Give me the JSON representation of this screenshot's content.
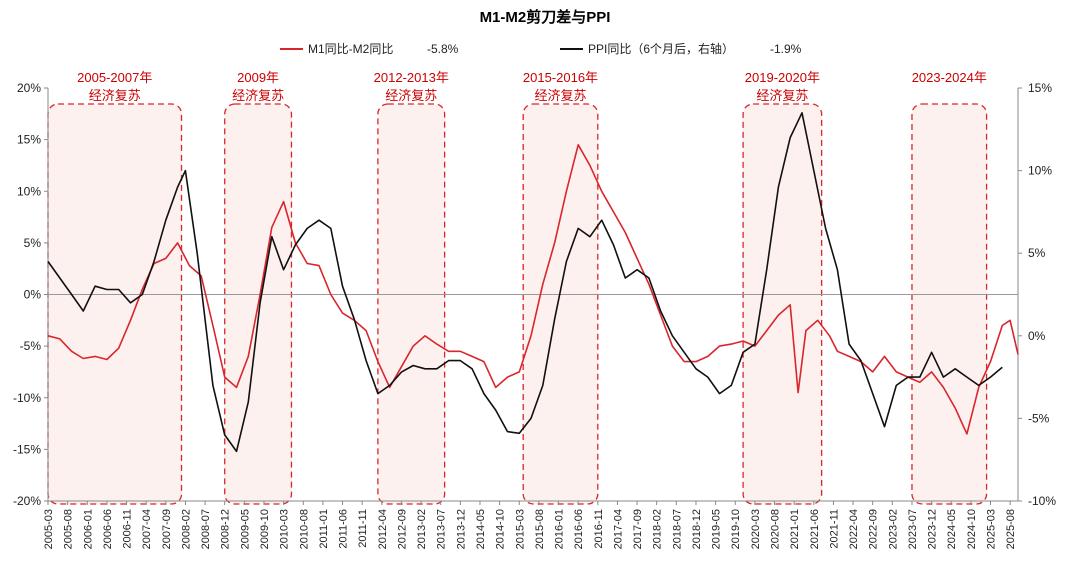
{
  "chart_data": {
    "type": "line",
    "title": "M1-M2剪刀差与PPI",
    "legend": [
      {
        "name": "M1同比-M2同比",
        "value": "-5.8%",
        "color": "#d9262c"
      },
      {
        "name": "PPI同比（6个月后，右轴）",
        "value": "-1.9%",
        "color": "#111111"
      }
    ],
    "left_axis": {
      "min": -20,
      "max": 20,
      "ticks": [
        "20%",
        "15%",
        "10%",
        "5%",
        "0%",
        "-5%",
        "-10%",
        "-15%",
        "-20%"
      ]
    },
    "right_axis": {
      "min": -10,
      "max": 15,
      "ticks": [
        "15%",
        "10%",
        "5%",
        "0%",
        "-5%",
        "-10%"
      ]
    },
    "x_tick_labels": [
      "2005-03",
      "2005-08",
      "2006-01",
      "2006-06",
      "2006-11",
      "2007-04",
      "2007-09",
      "2008-02",
      "2008-07",
      "2008-12",
      "2009-05",
      "2009-10",
      "2010-03",
      "2010-08",
      "2011-01",
      "2011-06",
      "2011-11",
      "2012-04",
      "2012-09",
      "2013-02",
      "2013-07",
      "2013-12",
      "2014-05",
      "2014-10",
      "2015-03",
      "2015-08",
      "2016-01",
      "2016-06",
      "2016-11",
      "2017-04",
      "2017-09",
      "2018-02",
      "2018-07",
      "2018-12",
      "2019-05",
      "2019-10",
      "2020-03",
      "2020-08",
      "2021-01",
      "2021-06",
      "2021-11",
      "2022-04",
      "2022-09",
      "2023-02",
      "2023-07",
      "2023-12",
      "2024-05",
      "2024-10",
      "2025-03",
      "2025-08"
    ],
    "highlight_bands": [
      {
        "line1": "2005-2007年",
        "line2": "经济复苏",
        "start": "2005-03",
        "end": "2008-01"
      },
      {
        "line1": "2009年",
        "line2": "经济复苏",
        "start": "2008-12",
        "end": "2010-05"
      },
      {
        "line1": "2012-2013年",
        "line2": "经济复苏",
        "start": "2012-03",
        "end": "2013-08"
      },
      {
        "line1": "2015-2016年",
        "line2": "经济复苏",
        "start": "2015-04",
        "end": "2016-11"
      },
      {
        "line1": "2019-2020年",
        "line2": "经济复苏",
        "start": "2019-12",
        "end": "2021-08"
      },
      {
        "line1": "2023-2024年",
        "line2": "",
        "start": "2023-07",
        "end": "2025-02"
      }
    ],
    "series": [
      {
        "name": "M1同比-M2同比",
        "axis": "left",
        "color": "#d9262c",
        "points": [
          [
            "2005-03",
            -4.0
          ],
          [
            "2005-06",
            -4.3
          ],
          [
            "2005-09",
            -5.5
          ],
          [
            "2005-12",
            -6.2
          ],
          [
            "2006-03",
            -6.0
          ],
          [
            "2006-06",
            -6.3
          ],
          [
            "2006-09",
            -5.2
          ],
          [
            "2006-12",
            -2.5
          ],
          [
            "2007-03",
            0.5
          ],
          [
            "2007-06",
            3.0
          ],
          [
            "2007-09",
            3.5
          ],
          [
            "2007-12",
            5.0
          ],
          [
            "2008-03",
            2.8
          ],
          [
            "2008-06",
            1.8
          ],
          [
            "2008-09",
            -3.0
          ],
          [
            "2008-12",
            -8.0
          ],
          [
            "2009-03",
            -9.0
          ],
          [
            "2009-06",
            -6.0
          ],
          [
            "2009-09",
            0.0
          ],
          [
            "2009-12",
            6.5
          ],
          [
            "2010-03",
            9.0
          ],
          [
            "2010-06",
            5.0
          ],
          [
            "2010-09",
            3.0
          ],
          [
            "2010-12",
            2.8
          ],
          [
            "2011-03",
            0.0
          ],
          [
            "2011-06",
            -1.8
          ],
          [
            "2011-09",
            -2.5
          ],
          [
            "2011-12",
            -3.5
          ],
          [
            "2012-03",
            -6.5
          ],
          [
            "2012-06",
            -9.0
          ],
          [
            "2012-09",
            -7.0
          ],
          [
            "2012-12",
            -5.0
          ],
          [
            "2013-03",
            -4.0
          ],
          [
            "2013-06",
            -4.8
          ],
          [
            "2013-09",
            -5.5
          ],
          [
            "2013-12",
            -5.5
          ],
          [
            "2014-03",
            -6.0
          ],
          [
            "2014-06",
            -6.5
          ],
          [
            "2014-09",
            -9.0
          ],
          [
            "2014-12",
            -8.0
          ],
          [
            "2015-03",
            -7.5
          ],
          [
            "2015-06",
            -4.0
          ],
          [
            "2015-09",
            1.0
          ],
          [
            "2015-12",
            5.0
          ],
          [
            "2016-03",
            10.0
          ],
          [
            "2016-06",
            14.5
          ],
          [
            "2016-09",
            12.5
          ],
          [
            "2016-12",
            10.0
          ],
          [
            "2017-03",
            8.0
          ],
          [
            "2017-06",
            6.0
          ],
          [
            "2017-09",
            3.5
          ],
          [
            "2017-12",
            1.0
          ],
          [
            "2018-03",
            -2.0
          ],
          [
            "2018-06",
            -5.0
          ],
          [
            "2018-09",
            -6.5
          ],
          [
            "2018-12",
            -6.5
          ],
          [
            "2019-03",
            -6.0
          ],
          [
            "2019-06",
            -5.0
          ],
          [
            "2019-09",
            -4.8
          ],
          [
            "2019-12",
            -4.5
          ],
          [
            "2020-03",
            -5.0
          ],
          [
            "2020-06",
            -3.5
          ],
          [
            "2020-09",
            -2.0
          ],
          [
            "2020-12",
            -1.0
          ],
          [
            "2021-02",
            -9.5
          ],
          [
            "2021-04",
            -3.5
          ],
          [
            "2021-07",
            -2.5
          ],
          [
            "2021-10",
            -4.0
          ],
          [
            "2021-12",
            -5.5
          ],
          [
            "2022-03",
            -6.0
          ],
          [
            "2022-06",
            -6.5
          ],
          [
            "2022-09",
            -7.5
          ],
          [
            "2022-12",
            -6.0
          ],
          [
            "2023-03",
            -7.5
          ],
          [
            "2023-06",
            -8.0
          ],
          [
            "2023-09",
            -8.5
          ],
          [
            "2023-12",
            -7.5
          ],
          [
            "2024-03",
            -9.0
          ],
          [
            "2024-06",
            -11.0
          ],
          [
            "2024-09",
            -13.5
          ],
          [
            "2024-12",
            -9.0
          ],
          [
            "2025-03",
            -6.5
          ],
          [
            "2025-06",
            -3.0
          ],
          [
            "2025-08",
            -2.5
          ],
          [
            "2025-10",
            -5.8
          ]
        ]
      },
      {
        "name": "PPI同比（6个月后，右轴）",
        "axis": "right",
        "color": "#111111",
        "points": [
          [
            "2005-03",
            4.5
          ],
          [
            "2005-06",
            3.5
          ],
          [
            "2005-09",
            2.5
          ],
          [
            "2005-12",
            1.5
          ],
          [
            "2006-03",
            3.0
          ],
          [
            "2006-06",
            2.8
          ],
          [
            "2006-09",
            2.8
          ],
          [
            "2006-12",
            2.0
          ],
          [
            "2007-03",
            2.5
          ],
          [
            "2007-06",
            4.5
          ],
          [
            "2007-09",
            7.0
          ],
          [
            "2007-12",
            9.0
          ],
          [
            "2008-02",
            10.0
          ],
          [
            "2008-05",
            5.0
          ],
          [
            "2008-09",
            -3.0
          ],
          [
            "2008-12",
            -6.0
          ],
          [
            "2009-03",
            -7.0
          ],
          [
            "2009-06",
            -4.0
          ],
          [
            "2009-09",
            2.0
          ],
          [
            "2009-12",
            6.0
          ],
          [
            "2010-03",
            4.0
          ],
          [
            "2010-06",
            5.5
          ],
          [
            "2010-09",
            6.5
          ],
          [
            "2010-12",
            7.0
          ],
          [
            "2011-03",
            6.5
          ],
          [
            "2011-06",
            3.0
          ],
          [
            "2011-09",
            1.0
          ],
          [
            "2011-12",
            -1.5
          ],
          [
            "2012-03",
            -3.5
          ],
          [
            "2012-06",
            -3.0
          ],
          [
            "2012-09",
            -2.2
          ],
          [
            "2012-12",
            -1.8
          ],
          [
            "2013-03",
            -2.0
          ],
          [
            "2013-06",
            -2.0
          ],
          [
            "2013-09",
            -1.5
          ],
          [
            "2013-12",
            -1.5
          ],
          [
            "2014-03",
            -2.0
          ],
          [
            "2014-06",
            -3.5
          ],
          [
            "2014-09",
            -4.5
          ],
          [
            "2014-12",
            -5.8
          ],
          [
            "2015-03",
            -5.9
          ],
          [
            "2015-06",
            -5.0
          ],
          [
            "2015-09",
            -3.0
          ],
          [
            "2015-12",
            1.0
          ],
          [
            "2016-03",
            4.5
          ],
          [
            "2016-06",
            6.5
          ],
          [
            "2016-09",
            6.0
          ],
          [
            "2016-12",
            7.0
          ],
          [
            "2017-03",
            5.5
          ],
          [
            "2017-06",
            3.5
          ],
          [
            "2017-09",
            4.0
          ],
          [
            "2017-12",
            3.5
          ],
          [
            "2018-03",
            1.5
          ],
          [
            "2018-06",
            0.0
          ],
          [
            "2018-09",
            -1.0
          ],
          [
            "2018-12",
            -2.0
          ],
          [
            "2019-03",
            -2.5
          ],
          [
            "2019-06",
            -3.5
          ],
          [
            "2019-09",
            -3.0
          ],
          [
            "2019-12",
            -1.0
          ],
          [
            "2020-03",
            -0.5
          ],
          [
            "2020-06",
            4.0
          ],
          [
            "2020-09",
            9.0
          ],
          [
            "2020-12",
            12.0
          ],
          [
            "2021-03",
            13.5
          ],
          [
            "2021-06",
            10.0
          ],
          [
            "2021-09",
            6.5
          ],
          [
            "2021-12",
            4.0
          ],
          [
            "2022-03",
            -0.5
          ],
          [
            "2022-06",
            -1.5
          ],
          [
            "2022-09",
            -3.5
          ],
          [
            "2022-12",
            -5.5
          ],
          [
            "2023-03",
            -3.0
          ],
          [
            "2023-06",
            -2.5
          ],
          [
            "2023-09",
            -2.5
          ],
          [
            "2023-12",
            -1.0
          ],
          [
            "2024-03",
            -2.5
          ],
          [
            "2024-06",
            -2.0
          ],
          [
            "2024-09",
            -2.5
          ],
          [
            "2024-12",
            -3.0
          ],
          [
            "2025-03",
            -2.5
          ],
          [
            "2025-06",
            -1.9
          ]
        ]
      }
    ]
  }
}
